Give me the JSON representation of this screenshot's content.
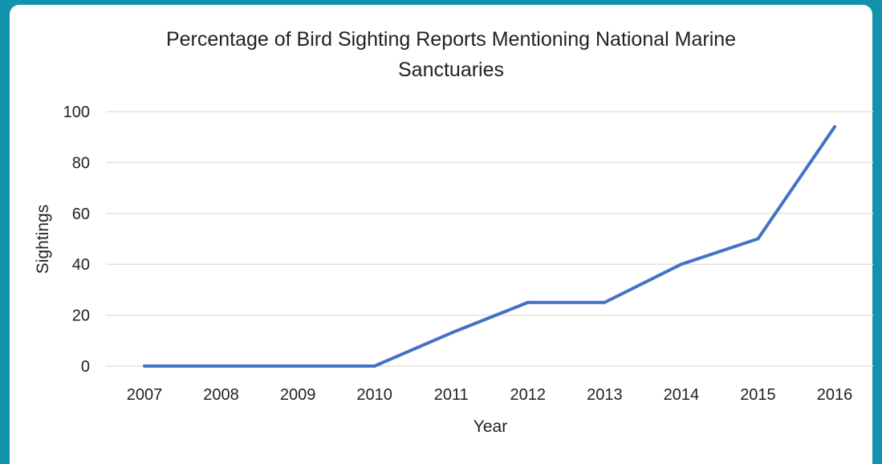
{
  "colors": {
    "frame": "#1293ad",
    "panel": "#ffffff",
    "grid": "#e3e3e3",
    "line": "#4472c4",
    "text": "#222222"
  },
  "chart_data": {
    "type": "line",
    "title": "Percentage of Bird Sighting Reports Mentioning National Marine Sanctuaries",
    "title_lines": [
      "Percentage of Bird Sighting Reports Mentioning National Marine",
      "Sanctuaries"
    ],
    "xlabel": "Year",
    "ylabel": "Sightings",
    "categories": [
      "2007",
      "2008",
      "2009",
      "2010",
      "2011",
      "2012",
      "2013",
      "2014",
      "2015",
      "2016"
    ],
    "series": [
      {
        "values": [
          0,
          0,
          0,
          0,
          13,
          25,
          25,
          40,
          50,
          94
        ]
      }
    ],
    "ylim": [
      0,
      100
    ],
    "yticks": [
      "0",
      "20",
      "40",
      "60",
      "80",
      "100"
    ],
    "grid": true,
    "legend": "none"
  }
}
